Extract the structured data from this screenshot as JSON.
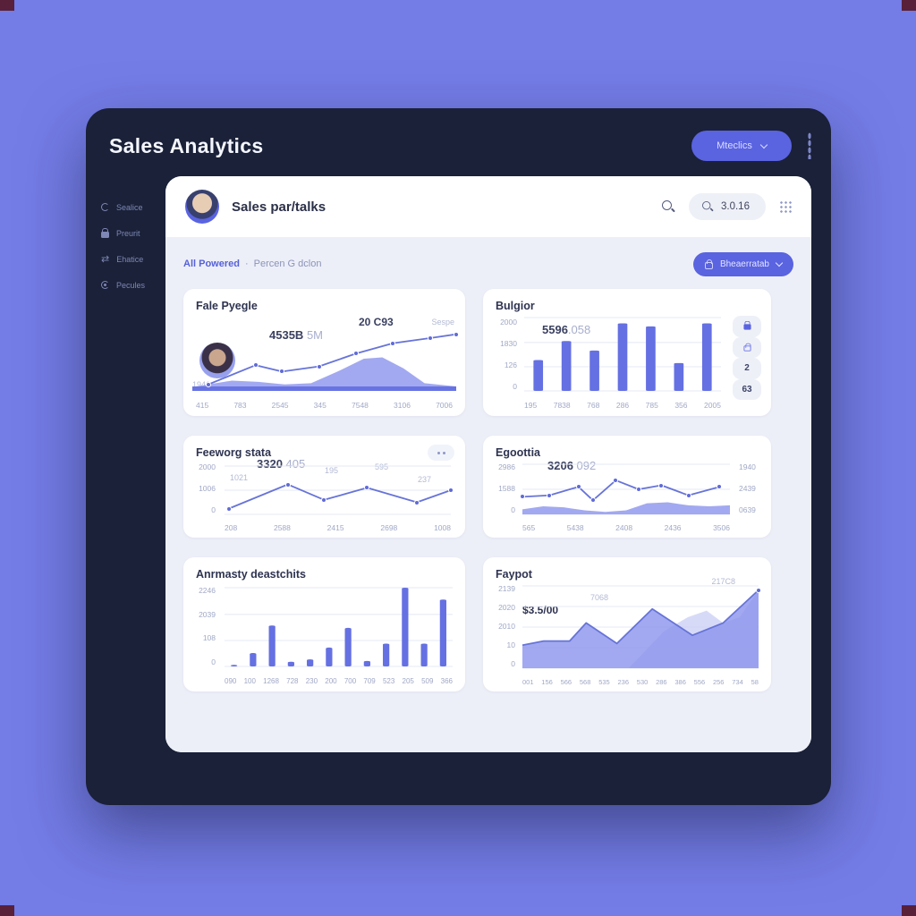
{
  "theme": {
    "accent": "#5a63e0",
    "bar": "#6570e2",
    "line": "#6774d8",
    "area": "#8b94ec",
    "area_bg": "#c9cef4",
    "window_bg": "#1a2138",
    "page_bg": "#747ce6",
    "content_bg": "#edeff8"
  },
  "window": {
    "title": "Sales Analytics",
    "metrics_button": "Mteclics"
  },
  "sidebar": {
    "items": [
      {
        "icon": "refresh-icon",
        "label": "Sealice"
      },
      {
        "icon": "lock-icon",
        "label": "Preurit"
      },
      {
        "icon": "swap-arrows-icon",
        "label": "Ehatice"
      },
      {
        "icon": "loader-icon",
        "label": "Pecules"
      }
    ]
  },
  "panel_header": {
    "user_title": "Sales par/talks",
    "search_value": "3.0.16"
  },
  "filter_bar": {
    "left_primary": "All Powered",
    "separator": "·",
    "left_secondary": "Percen G dclon",
    "right_button": "Bheaerratab"
  },
  "cards": [
    {
      "title": "Fale Pyegle",
      "big": "4535B",
      "big_light": "5M",
      "peak_label": "20 C93",
      "corner_label": "Sespe",
      "y_left": "1941",
      "xlabels": [
        "415",
        "783",
        "2545",
        "345",
        "7548",
        "3106",
        "7006"
      ],
      "chart": {
        "type": "line-area",
        "markers": "all",
        "line": [
          [
            0.06,
            0.1
          ],
          [
            0.24,
            0.4
          ],
          [
            0.34,
            0.3
          ],
          [
            0.48,
            0.38
          ],
          [
            0.62,
            0.58
          ],
          [
            0.76,
            0.74
          ],
          [
            0.9,
            0.82
          ],
          [
            1.0,
            0.88
          ]
        ],
        "area": [
          [
            0,
            0.06
          ],
          [
            0.15,
            0.16
          ],
          [
            0.25,
            0.14
          ],
          [
            0.35,
            0.1
          ],
          [
            0.45,
            0.12
          ],
          [
            0.55,
            0.3
          ],
          [
            0.65,
            0.5
          ],
          [
            0.72,
            0.52
          ],
          [
            0.8,
            0.35
          ],
          [
            0.88,
            0.12
          ],
          [
            1,
            0.07
          ]
        ],
        "band": [
          [
            0,
            0.07
          ],
          [
            1,
            0.07
          ]
        ]
      }
    },
    {
      "title": "Bulgior",
      "big": "5596",
      "big_light": ".058",
      "ylabels": [
        "2000",
        "1830",
        "126",
        "0"
      ],
      "xlabels": [
        "195",
        "7838",
        "768",
        "286",
        "785",
        "356",
        "2005"
      ],
      "side_values": [
        "2",
        "63"
      ],
      "chart": {
        "type": "bar",
        "gridlines": [
          1,
          0.66,
          0.33,
          0
        ],
        "bars": [
          0.42,
          0.68,
          0.55,
          0.92,
          0.88,
          0.38,
          0.92
        ]
      }
    },
    {
      "title": "Feeworg stata",
      "big": "3320",
      "big_light": "405",
      "small_labels": [
        "1021",
        "195",
        "595",
        "237"
      ],
      "ylabels": [
        "2000",
        "1006",
        "0"
      ],
      "xlabels": [
        "208",
        "2588",
        "2415",
        "2698",
        "1008"
      ],
      "chart": {
        "type": "line",
        "markers": "all",
        "gridlines": [
          1,
          0.5,
          0
        ],
        "line": [
          [
            0.02,
            0.12
          ],
          [
            0.28,
            0.62
          ],
          [
            0.44,
            0.3
          ],
          [
            0.63,
            0.55
          ],
          [
            0.85,
            0.25
          ],
          [
            1.0,
            0.5
          ]
        ]
      }
    },
    {
      "title": "Egoottia",
      "big": "3206",
      "big_light": "092",
      "ylabels": [
        "2986",
        "1588",
        "0"
      ],
      "ylabels_right": [
        "1940",
        "2439",
        "0639"
      ],
      "xlabels": [
        "565",
        "5438",
        "2408",
        "2436",
        "3506"
      ],
      "chart": {
        "type": "line-area",
        "markers": "all",
        "gridlines": [
          1,
          0.5,
          0
        ],
        "line": [
          [
            0,
            0.35
          ],
          [
            0.13,
            0.38
          ],
          [
            0.27,
            0.55
          ],
          [
            0.34,
            0.28
          ],
          [
            0.45,
            0.68
          ],
          [
            0.56,
            0.5
          ],
          [
            0.67,
            0.58
          ],
          [
            0.8,
            0.38
          ],
          [
            0.95,
            0.55
          ]
        ],
        "area": [
          [
            0,
            0.1
          ],
          [
            0.1,
            0.16
          ],
          [
            0.2,
            0.14
          ],
          [
            0.3,
            0.08
          ],
          [
            0.4,
            0.05
          ],
          [
            0.5,
            0.08
          ],
          [
            0.6,
            0.22
          ],
          [
            0.7,
            0.24
          ],
          [
            0.8,
            0.18
          ],
          [
            0.9,
            0.16
          ],
          [
            1,
            0.18
          ]
        ]
      }
    },
    {
      "title": "Anrmasty deastchits",
      "ylabels": [
        "2246",
        "2039",
        "108",
        "0"
      ],
      "xlabels": [
        "090",
        "100",
        "1268",
        "728",
        "230",
        "200",
        "700",
        "709",
        "523",
        "205",
        "509",
        "366"
      ],
      "chart": {
        "type": "bar",
        "gridlines": [
          1,
          0.66,
          0.33,
          0
        ],
        "bars": [
          0.02,
          0.17,
          0.52,
          0.06,
          0.09,
          0.24,
          0.49,
          0.07,
          0.29,
          1.0,
          0.29,
          0.85
        ]
      }
    },
    {
      "title": "Faypot",
      "ann_big": "$3.5/00",
      "ann_light1": "7068",
      "ann_light2": "217C8",
      "ylabels": [
        "2139",
        "2020",
        "2010",
        "10",
        "0"
      ],
      "xlabels": [
        "001",
        "156",
        "566",
        "568",
        "535",
        "236",
        "530",
        "286",
        "386",
        "556",
        "256",
        "734",
        "58"
      ],
      "chart": {
        "type": "area",
        "markers": "end",
        "gridlines": [
          1,
          0.75,
          0.5,
          0.25,
          0
        ],
        "area_bg": [
          [
            0.45,
            0.0
          ],
          [
            0.6,
            0.45
          ],
          [
            0.7,
            0.62
          ],
          [
            0.78,
            0.7
          ],
          [
            0.85,
            0.55
          ],
          [
            0.92,
            0.62
          ],
          [
            1,
            0.95
          ]
        ],
        "area": [
          [
            0,
            0.28
          ],
          [
            0.09,
            0.33
          ],
          [
            0.2,
            0.33
          ],
          [
            0.27,
            0.55
          ],
          [
            0.4,
            0.3
          ],
          [
            0.55,
            0.72
          ],
          [
            0.72,
            0.4
          ],
          [
            0.85,
            0.55
          ],
          [
            1,
            0.95
          ]
        ],
        "line": [
          [
            0,
            0.28
          ],
          [
            0.09,
            0.33
          ],
          [
            0.2,
            0.33
          ],
          [
            0.27,
            0.55
          ],
          [
            0.4,
            0.3
          ],
          [
            0.55,
            0.72
          ],
          [
            0.72,
            0.4
          ],
          [
            0.85,
            0.55
          ],
          [
            1,
            0.95
          ]
        ]
      }
    }
  ]
}
